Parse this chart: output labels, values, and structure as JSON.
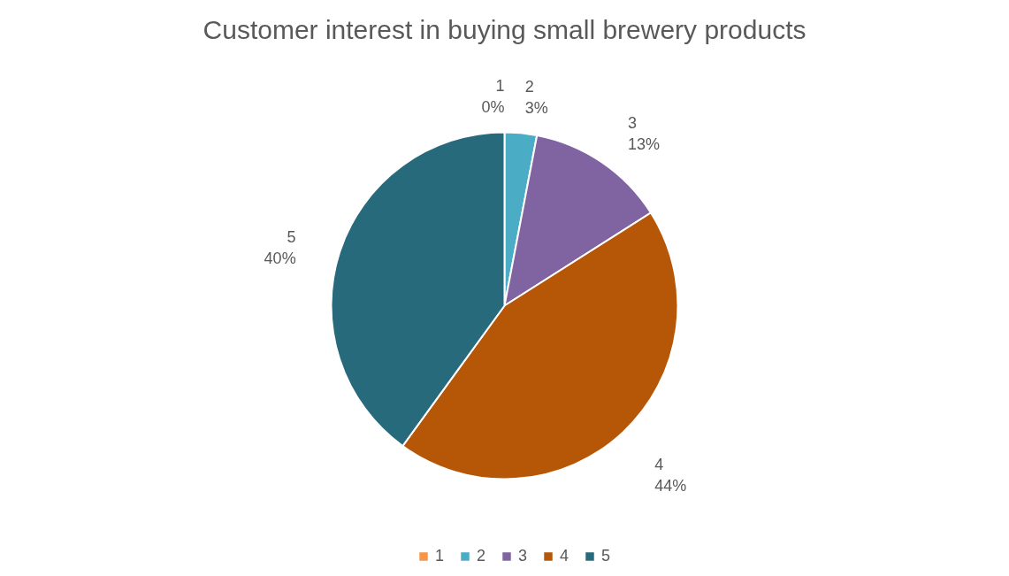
{
  "chart_data": {
    "type": "pie",
    "title": "Customer interest in buying small brewery products",
    "categories": [
      "1",
      "2",
      "3",
      "4",
      "5"
    ],
    "values": [
      0,
      3,
      13,
      44,
      40
    ],
    "value_labels": [
      "0%",
      "3%",
      "13%",
      "44%",
      "40%"
    ],
    "colors": [
      "#f79646",
      "#4bacc6",
      "#8064a2",
      "#b65708",
      "#276a7c"
    ],
    "legend": "bottom"
  }
}
